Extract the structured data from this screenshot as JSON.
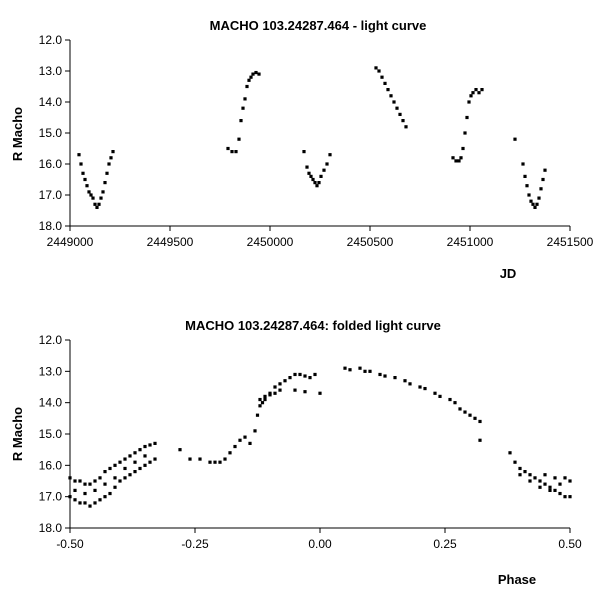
{
  "chart_data": [
    {
      "type": "scatter",
      "title": "MACHO 103.24287.464 - light curve",
      "xlabel": "JD",
      "ylabel": "R Macho",
      "xlim": [
        2449000,
        2451500
      ],
      "ylim": [
        12.0,
        18.0
      ],
      "y_inverted": true,
      "grid": false,
      "x_ticks": [
        "2449000",
        "2449500",
        "2450000",
        "2450500",
        "2451000",
        "2451500"
      ],
      "y_ticks": [
        "12.0",
        "13.0",
        "14.0",
        "15.0",
        "16.0",
        "17.0",
        "18.0"
      ],
      "marker_color": "#000000",
      "series": [
        {
          "points": [
            [
              2449045,
              15.7
            ],
            [
              2449055,
              16.0
            ],
            [
              2449065,
              16.3
            ],
            [
              2449075,
              16.5
            ],
            [
              2449085,
              16.7
            ],
            [
              2449095,
              16.9
            ],
            [
              2449105,
              17.0
            ],
            [
              2449115,
              17.1
            ],
            [
              2449125,
              17.3
            ],
            [
              2449135,
              17.4
            ],
            [
              2449145,
              17.3
            ],
            [
              2449155,
              17.1
            ],
            [
              2449165,
              16.9
            ],
            [
              2449175,
              16.6
            ],
            [
              2449185,
              16.3
            ],
            [
              2449195,
              16.0
            ],
            [
              2449205,
              15.8
            ],
            [
              2449215,
              15.6
            ],
            [
              2449790,
              15.5
            ],
            [
              2449810,
              15.6
            ],
            [
              2449830,
              15.6
            ],
            [
              2449845,
              15.2
            ],
            [
              2449855,
              14.6
            ],
            [
              2449865,
              14.2
            ],
            [
              2449875,
              13.9
            ],
            [
              2449885,
              13.5
            ],
            [
              2449895,
              13.3
            ],
            [
              2449905,
              13.2
            ],
            [
              2449915,
              13.1
            ],
            [
              2449930,
              13.05
            ],
            [
              2449945,
              13.1
            ],
            [
              2450170,
              15.6
            ],
            [
              2450185,
              16.1
            ],
            [
              2450195,
              16.3
            ],
            [
              2450205,
              16.4
            ],
            [
              2450215,
              16.5
            ],
            [
              2450225,
              16.6
            ],
            [
              2450235,
              16.7
            ],
            [
              2450245,
              16.6
            ],
            [
              2450255,
              16.4
            ],
            [
              2450270,
              16.2
            ],
            [
              2450285,
              16.0
            ],
            [
              2450300,
              15.7
            ],
            [
              2450530,
              12.9
            ],
            [
              2450545,
              13.0
            ],
            [
              2450560,
              13.2
            ],
            [
              2450575,
              13.4
            ],
            [
              2450590,
              13.6
            ],
            [
              2450605,
              13.8
            ],
            [
              2450620,
              14.0
            ],
            [
              2450635,
              14.2
            ],
            [
              2450650,
              14.4
            ],
            [
              2450665,
              14.6
            ],
            [
              2450680,
              14.8
            ],
            [
              2450915,
              15.8
            ],
            [
              2450930,
              15.9
            ],
            [
              2450945,
              15.9
            ],
            [
              2450955,
              15.8
            ],
            [
              2450965,
              15.5
            ],
            [
              2450975,
              15.0
            ],
            [
              2450985,
              14.5
            ],
            [
              2450995,
              14.0
            ],
            [
              2451005,
              13.8
            ],
            [
              2451015,
              13.7
            ],
            [
              2451030,
              13.6
            ],
            [
              2451045,
              13.7
            ],
            [
              2451060,
              13.6
            ],
            [
              2451225,
              15.2
            ],
            [
              2451265,
              16.0
            ],
            [
              2451275,
              16.4
            ],
            [
              2451285,
              16.7
            ],
            [
              2451295,
              17.0
            ],
            [
              2451305,
              17.2
            ],
            [
              2451315,
              17.3
            ],
            [
              2451325,
              17.4
            ],
            [
              2451335,
              17.3
            ],
            [
              2451345,
              17.1
            ],
            [
              2451355,
              16.8
            ],
            [
              2451365,
              16.5
            ],
            [
              2451375,
              16.2
            ]
          ]
        }
      ]
    },
    {
      "type": "scatter",
      "title": "MACHO 103.24287.464: folded light curve",
      "xlabel": "Phase",
      "ylabel": "R Macho",
      "xlim": [
        -0.5,
        0.5
      ],
      "ylim": [
        12.0,
        18.0
      ],
      "y_inverted": true,
      "grid": false,
      "x_ticks": [
        "-0.50",
        "-0.25",
        "0.00",
        "0.25",
        "0.50"
      ],
      "y_ticks": [
        "12.0",
        "13.0",
        "14.0",
        "15.0",
        "16.0",
        "17.0",
        "18.0"
      ],
      "marker_color": "#000000",
      "series": [
        {
          "points": [
            [
              -0.5,
              16.4
            ],
            [
              -0.49,
              16.5
            ],
            [
              -0.48,
              16.5
            ],
            [
              -0.47,
              16.6
            ],
            [
              -0.46,
              16.6
            ],
            [
              -0.45,
              16.5
            ],
            [
              -0.44,
              16.4
            ],
            [
              -0.43,
              16.2
            ],
            [
              -0.42,
              16.1
            ],
            [
              -0.41,
              16.0
            ],
            [
              -0.4,
              15.9
            ],
            [
              -0.39,
              15.8
            ],
            [
              -0.38,
              15.7
            ],
            [
              -0.37,
              15.6
            ],
            [
              -0.36,
              15.5
            ],
            [
              -0.35,
              15.4
            ],
            [
              -0.34,
              15.35
            ],
            [
              -0.33,
              15.3
            ],
            [
              -0.5,
              17.0
            ],
            [
              -0.49,
              17.1
            ],
            [
              -0.48,
              17.2
            ],
            [
              -0.47,
              17.2
            ],
            [
              -0.46,
              17.3
            ],
            [
              -0.45,
              17.2
            ],
            [
              -0.44,
              17.1
            ],
            [
              -0.43,
              17.0
            ],
            [
              -0.42,
              16.9
            ],
            [
              -0.41,
              16.7
            ],
            [
              -0.4,
              16.5
            ],
            [
              -0.39,
              16.4
            ],
            [
              -0.38,
              16.3
            ],
            [
              -0.37,
              16.2
            ],
            [
              -0.36,
              16.1
            ],
            [
              -0.35,
              16.0
            ],
            [
              -0.34,
              15.9
            ],
            [
              -0.33,
              15.8
            ],
            [
              -0.49,
              16.8
            ],
            [
              -0.47,
              16.9
            ],
            [
              -0.45,
              16.8
            ],
            [
              -0.43,
              16.6
            ],
            [
              -0.41,
              16.4
            ],
            [
              -0.39,
              16.1
            ],
            [
              -0.37,
              15.9
            ],
            [
              -0.35,
              15.7
            ],
            [
              -0.28,
              15.5
            ],
            [
              -0.26,
              15.8
            ],
            [
              -0.24,
              15.8
            ],
            [
              -0.22,
              15.9
            ],
            [
              -0.21,
              15.9
            ],
            [
              -0.2,
              15.9
            ],
            [
              -0.19,
              15.8
            ],
            [
              -0.18,
              15.6
            ],
            [
              -0.17,
              15.4
            ],
            [
              -0.16,
              15.2
            ],
            [
              -0.15,
              15.1
            ],
            [
              -0.14,
              15.3
            ],
            [
              -0.13,
              14.9
            ],
            [
              -0.125,
              14.4
            ],
            [
              -0.12,
              14.1
            ],
            [
              -0.115,
              14.0
            ],
            [
              -0.11,
              13.9
            ],
            [
              -0.1,
              13.7
            ],
            [
              -0.09,
              13.5
            ],
            [
              -0.08,
              13.4
            ],
            [
              -0.07,
              13.3
            ],
            [
              -0.06,
              13.2
            ],
            [
              -0.05,
              13.1
            ],
            [
              -0.04,
              13.1
            ],
            [
              -0.03,
              13.15
            ],
            [
              -0.02,
              13.2
            ],
            [
              -0.01,
              13.1
            ],
            [
              -0.12,
              13.9
            ],
            [
              -0.11,
              13.8
            ],
            [
              -0.1,
              13.75
            ],
            [
              -0.09,
              13.7
            ],
            [
              -0.08,
              13.6
            ],
            [
              -0.05,
              13.6
            ],
            [
              -0.03,
              13.65
            ],
            [
              0.0,
              13.7
            ],
            [
              0.05,
              12.9
            ],
            [
              0.06,
              12.95
            ],
            [
              0.08,
              12.9
            ],
            [
              0.09,
              13.0
            ],
            [
              0.1,
              13.0
            ],
            [
              0.12,
              13.1
            ],
            [
              0.13,
              13.15
            ],
            [
              0.15,
              13.2
            ],
            [
              0.17,
              13.3
            ],
            [
              0.18,
              13.4
            ],
            [
              0.2,
              13.5
            ],
            [
              0.21,
              13.55
            ],
            [
              0.23,
              13.7
            ],
            [
              0.24,
              13.8
            ],
            [
              0.26,
              13.9
            ],
            [
              0.27,
              14.0
            ],
            [
              0.28,
              14.2
            ],
            [
              0.29,
              14.3
            ],
            [
              0.3,
              14.4
            ],
            [
              0.31,
              14.5
            ],
            [
              0.32,
              14.6
            ],
            [
              0.32,
              15.2
            ],
            [
              0.38,
              15.6
            ],
            [
              0.39,
              15.9
            ],
            [
              0.4,
              16.1
            ],
            [
              0.41,
              16.2
            ],
            [
              0.42,
              16.3
            ],
            [
              0.43,
              16.4
            ],
            [
              0.44,
              16.5
            ],
            [
              0.45,
              16.6
            ],
            [
              0.46,
              16.7
            ],
            [
              0.47,
              16.8
            ],
            [
              0.48,
              16.9
            ],
            [
              0.49,
              17.0
            ],
            [
              0.5,
              17.0
            ],
            [
              0.4,
              16.3
            ],
            [
              0.42,
              16.5
            ],
            [
              0.44,
              16.7
            ],
            [
              0.46,
              16.8
            ],
            [
              0.48,
              16.6
            ],
            [
              0.5,
              16.5
            ],
            [
              0.45,
              16.3
            ],
            [
              0.47,
              16.4
            ],
            [
              0.49,
              16.4
            ]
          ]
        }
      ]
    }
  ]
}
